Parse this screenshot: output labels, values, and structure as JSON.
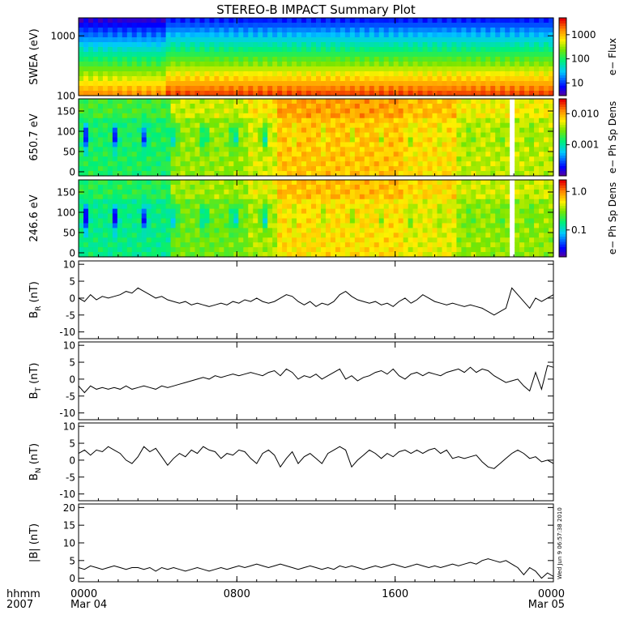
{
  "title": "STEREO-B IMPACT Summary Plot",
  "timestamp": "Wed Jun 9 06:57:38 2010",
  "time_axis": {
    "row1_label": "hhmm",
    "row2_label": "2007",
    "ticks": [
      {
        "value": 0,
        "hhmm": "0000",
        "date": "Mar 04"
      },
      {
        "value": 8,
        "hhmm": "0800",
        "date": ""
      },
      {
        "value": 16,
        "hhmm": "1600",
        "date": ""
      },
      {
        "value": 24,
        "hhmm": "0000",
        "date": "Mar 05"
      }
    ]
  },
  "chart_data": [
    {
      "type": "heatmap",
      "id": "swea",
      "ylabel": "SWEA (eV)",
      "yscale": "log",
      "ylim": [
        100,
        2000
      ],
      "yticks": [
        {
          "v": 100,
          "t": "100"
        },
        {
          "v": 1000,
          "t": "1000"
        }
      ],
      "colorbar_label": "e− Flux",
      "colorbar_scale": "log",
      "colorbar_range": [
        3,
        5000
      ],
      "colorbar_ticks": [
        {
          "v": 10,
          "t": "10"
        },
        {
          "v": 100,
          "t": "100"
        },
        {
          "v": 1000,
          "t": "1000"
        }
      ],
      "x_range_hours": [
        0,
        24
      ],
      "data_gap_hours": null
    },
    {
      "type": "heatmap",
      "id": "pad650",
      "ylabel": "650.7 eV",
      "yscale": "linear",
      "ylim": [
        -10,
        180
      ],
      "yticks": [
        {
          "v": 0,
          "t": "0"
        },
        {
          "v": 50,
          "t": "50"
        },
        {
          "v": 100,
          "t": "100"
        },
        {
          "v": 150,
          "t": "150"
        }
      ],
      "colorbar_label": "e− Ph Sp Dens",
      "colorbar_scale": "log",
      "colorbar_range": [
        0.0001,
        0.03
      ],
      "colorbar_ticks": [
        {
          "v": 0.001,
          "t": "0.001"
        },
        {
          "v": 0.01,
          "t": "0.010"
        }
      ],
      "x_range_hours": [
        0,
        24
      ],
      "data_gap_hours": 21.95
    },
    {
      "type": "heatmap",
      "id": "pad246",
      "ylabel": "246.6 eV",
      "yscale": "linear",
      "ylim": [
        -10,
        180
      ],
      "yticks": [
        {
          "v": 0,
          "t": "0"
        },
        {
          "v": 50,
          "t": "50"
        },
        {
          "v": 100,
          "t": "100"
        },
        {
          "v": 150,
          "t": "150"
        }
      ],
      "colorbar_label": "e− Ph Sp Dens",
      "colorbar_scale": "log",
      "colorbar_range": [
        0.02,
        2
      ],
      "colorbar_ticks": [
        {
          "v": 0.1,
          "t": "0.1"
        },
        {
          "v": 1,
          "t": "1.0"
        }
      ],
      "x_range_hours": [
        0,
        24
      ],
      "data_gap_hours": 21.95
    },
    {
      "type": "line",
      "id": "br",
      "ylabel": "B",
      "ylabel_sub": "R",
      "ylabel_unit": " (nT)",
      "ylim": [
        -12,
        11
      ],
      "yticks": [
        -10,
        -5,
        0,
        5,
        10
      ],
      "x": [
        0,
        0.3,
        0.6,
        0.9,
        1.2,
        1.5,
        1.8,
        2.1,
        2.4,
        2.7,
        3.0,
        3.3,
        3.6,
        3.9,
        4.2,
        4.5,
        4.8,
        5.1,
        5.4,
        5.7,
        6.0,
        6.3,
        6.6,
        6.9,
        7.2,
        7.5,
        7.8,
        8.1,
        8.4,
        8.7,
        9.0,
        9.3,
        9.6,
        9.9,
        10.2,
        10.5,
        10.8,
        11.1,
        11.4,
        11.7,
        12.0,
        12.3,
        12.6,
        12.9,
        13.2,
        13.5,
        13.8,
        14.1,
        14.4,
        14.7,
        15.0,
        15.3,
        15.6,
        15.9,
        16.2,
        16.5,
        16.8,
        17.1,
        17.4,
        17.7,
        18.0,
        18.3,
        18.6,
        18.9,
        19.2,
        19.5,
        19.8,
        20.1,
        20.4,
        20.7,
        21.0,
        21.3,
        21.6,
        21.9,
        22.2,
        22.5,
        22.8,
        23.1,
        23.4,
        23.7,
        24.0
      ],
      "y": [
        0,
        -1,
        1,
        -0.5,
        0.5,
        0,
        0.5,
        1,
        2,
        1.5,
        3,
        2,
        1,
        0,
        0.5,
        -0.5,
        -1,
        -1.5,
        -1,
        -2,
        -1.5,
        -2,
        -2.5,
        -2,
        -1.5,
        -2,
        -1,
        -1.5,
        -0.5,
        -1,
        0,
        -1,
        -1.5,
        -1,
        0,
        1,
        0.5,
        -1,
        -2,
        -1,
        -2.5,
        -1.5,
        -2,
        -1,
        1,
        2,
        0.5,
        -0.5,
        -1,
        -1.5,
        -1,
        -2,
        -1.5,
        -2.5,
        -1,
        0,
        -1.5,
        -0.5,
        1,
        0,
        -1,
        -1.5,
        -2,
        -1.5,
        -2,
        -2.5,
        -2,
        -2.5,
        -3,
        -4,
        -5,
        -4,
        -3,
        3,
        1,
        -1,
        -3,
        0,
        -1,
        0,
        1
      ]
    },
    {
      "type": "line",
      "id": "bt",
      "ylabel": "B",
      "ylabel_sub": "T",
      "ylabel_unit": " (nT)",
      "ylim": [
        -12,
        11
      ],
      "yticks": [
        -10,
        -5,
        0,
        5,
        10
      ],
      "x": [
        0,
        0.3,
        0.6,
        0.9,
        1.2,
        1.5,
        1.8,
        2.1,
        2.4,
        2.7,
        3.0,
        3.3,
        3.6,
        3.9,
        4.2,
        4.5,
        4.8,
        5.1,
        5.4,
        5.7,
        6.0,
        6.3,
        6.6,
        6.9,
        7.2,
        7.5,
        7.8,
        8.1,
        8.4,
        8.7,
        9.0,
        9.3,
        9.6,
        9.9,
        10.2,
        10.5,
        10.8,
        11.1,
        11.4,
        11.7,
        12.0,
        12.3,
        12.6,
        12.9,
        13.2,
        13.5,
        13.8,
        14.1,
        14.4,
        14.7,
        15.0,
        15.3,
        15.6,
        15.9,
        16.2,
        16.5,
        16.8,
        17.1,
        17.4,
        17.7,
        18.0,
        18.3,
        18.6,
        18.9,
        19.2,
        19.5,
        19.8,
        20.1,
        20.4,
        20.7,
        21.0,
        21.3,
        21.6,
        21.9,
        22.2,
        22.5,
        22.8,
        23.1,
        23.4,
        23.7,
        24.0
      ],
      "y": [
        -2,
        -4,
        -2,
        -3,
        -2.5,
        -3,
        -2.5,
        -3,
        -2,
        -3,
        -2.5,
        -2,
        -2.5,
        -3,
        -2,
        -2.5,
        -2,
        -1.5,
        -1,
        -0.5,
        0,
        0.5,
        0,
        1,
        0.5,
        1,
        1.5,
        1,
        1.5,
        2,
        1.5,
        1,
        2,
        2.5,
        1,
        3,
        2,
        0,
        1,
        0.5,
        1.5,
        0,
        1,
        2,
        3,
        0,
        1,
        -0.5,
        0.5,
        1,
        2,
        2.5,
        1.5,
        3,
        1,
        0,
        1.5,
        2,
        1,
        2,
        1.5,
        1,
        2,
        2.5,
        3,
        2,
        3.5,
        2,
        3,
        2.5,
        1,
        0,
        -1,
        -0.5,
        0,
        -2,
        -3.5,
        2,
        -3,
        4,
        3.5
      ]
    },
    {
      "type": "line",
      "id": "bn",
      "ylabel": "B",
      "ylabel_sub": "N",
      "ylabel_unit": " (nT)",
      "ylim": [
        -12,
        11
      ],
      "yticks": [
        -10,
        -5,
        0,
        5,
        10
      ],
      "x": [
        0,
        0.3,
        0.6,
        0.9,
        1.2,
        1.5,
        1.8,
        2.1,
        2.4,
        2.7,
        3.0,
        3.3,
        3.6,
        3.9,
        4.2,
        4.5,
        4.8,
        5.1,
        5.4,
        5.7,
        6.0,
        6.3,
        6.6,
        6.9,
        7.2,
        7.5,
        7.8,
        8.1,
        8.4,
        8.7,
        9.0,
        9.3,
        9.6,
        9.9,
        10.2,
        10.5,
        10.8,
        11.1,
        11.4,
        11.7,
        12.0,
        12.3,
        12.6,
        12.9,
        13.2,
        13.5,
        13.8,
        14.1,
        14.4,
        14.7,
        15.0,
        15.3,
        15.6,
        15.9,
        16.2,
        16.5,
        16.8,
        17.1,
        17.4,
        17.7,
        18.0,
        18.3,
        18.6,
        18.9,
        19.2,
        19.5,
        19.8,
        20.1,
        20.4,
        20.7,
        21.0,
        21.3,
        21.6,
        21.9,
        22.2,
        22.5,
        22.8,
        23.1,
        23.4,
        23.7,
        24.0
      ],
      "y": [
        2,
        3,
        1.5,
        3,
        2.5,
        4,
        3,
        2,
        0,
        -1,
        1,
        4,
        2.5,
        3.5,
        1,
        -1.5,
        0.5,
        2,
        1,
        3,
        2,
        4,
        3,
        2.5,
        0.5,
        2,
        1.5,
        3,
        2.5,
        0.5,
        -1,
        2,
        3,
        1.5,
        -2,
        0.5,
        2.5,
        -1,
        1,
        2,
        0.5,
        -1,
        2,
        3,
        4,
        3,
        -2,
        0,
        1.5,
        3,
        2,
        0.5,
        2,
        1,
        2.5,
        3,
        2,
        3,
        2,
        3,
        3.5,
        2,
        3,
        0.5,
        1,
        0.5,
        1,
        1.5,
        -0.5,
        -2,
        -2.5,
        -1,
        0.5,
        2,
        3,
        2,
        0.5,
        1,
        -0.5,
        0,
        -1
      ]
    },
    {
      "type": "line",
      "id": "bmag",
      "ylabel": "|B| (nT)",
      "ylim": [
        -1,
        21
      ],
      "yticks": [
        0,
        5,
        10,
        15,
        20
      ],
      "x": [
        0,
        0.3,
        0.6,
        0.9,
        1.2,
        1.5,
        1.8,
        2.1,
        2.4,
        2.7,
        3.0,
        3.3,
        3.6,
        3.9,
        4.2,
        4.5,
        4.8,
        5.1,
        5.4,
        5.7,
        6.0,
        6.3,
        6.6,
        6.9,
        7.2,
        7.5,
        7.8,
        8.1,
        8.4,
        8.7,
        9.0,
        9.3,
        9.6,
        9.9,
        10.2,
        10.5,
        10.8,
        11.1,
        11.4,
        11.7,
        12.0,
        12.3,
        12.6,
        12.9,
        13.2,
        13.5,
        13.8,
        14.1,
        14.4,
        14.7,
        15.0,
        15.3,
        15.6,
        15.9,
        16.2,
        16.5,
        16.8,
        17.1,
        17.4,
        17.7,
        18.0,
        18.3,
        18.6,
        18.9,
        19.2,
        19.5,
        19.8,
        20.1,
        20.4,
        20.7,
        21.0,
        21.3,
        21.6,
        21.9,
        22.2,
        22.5,
        22.8,
        23.1,
        23.4,
        23.7,
        24.0
      ],
      "y": [
        3,
        2.5,
        3.5,
        3,
        2.5,
        3,
        3.5,
        3,
        2.5,
        3,
        3,
        2.5,
        3,
        2,
        3,
        2.5,
        3,
        2.5,
        2,
        2.5,
        3,
        2.5,
        2,
        2.5,
        3,
        2.5,
        3,
        3.5,
        3,
        3.5,
        4,
        3.5,
        3,
        3.5,
        4,
        3.5,
        3,
        2.5,
        3,
        3.5,
        3,
        2.5,
        3,
        2.5,
        3.5,
        3,
        3.5,
        3,
        2.5,
        3,
        3.5,
        3,
        3.5,
        4,
        3.5,
        3,
        3.5,
        4,
        3.5,
        3,
        3.5,
        3,
        3.5,
        4,
        3.5,
        4,
        4.5,
        4,
        5,
        5.5,
        5,
        4.5,
        5,
        4,
        3,
        1,
        3,
        2,
        0,
        1.5,
        0.5
      ]
    }
  ]
}
